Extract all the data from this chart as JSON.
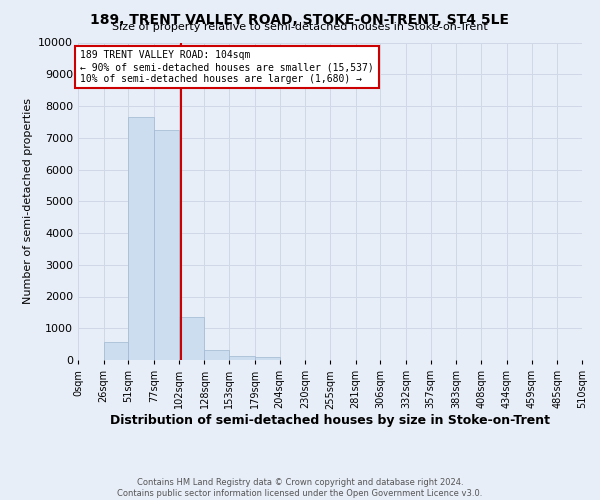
{
  "title": "189, TRENT VALLEY ROAD, STOKE-ON-TRENT, ST4 5LE",
  "subtitle": "Size of property relative to semi-detached houses in Stoke-on-Trent",
  "xlabel": "Distribution of semi-detached houses by size in Stoke-on-Trent",
  "ylabel": "Number of semi-detached properties",
  "footnote1": "Contains HM Land Registry data © Crown copyright and database right 2024.",
  "footnote2": "Contains public sector information licensed under the Open Government Licence v3.0.",
  "bin_edges": [
    0,
    26,
    51,
    77,
    102,
    128,
    153,
    179,
    204,
    230,
    255,
    281,
    306,
    332,
    357,
    383,
    408,
    434,
    459,
    485,
    510
  ],
  "bin_labels": [
    "0sqm",
    "26sqm",
    "51sqm",
    "77sqm",
    "102sqm",
    "128sqm",
    "153sqm",
    "179sqm",
    "204sqm",
    "230sqm",
    "255sqm",
    "281sqm",
    "306sqm",
    "332sqm",
    "357sqm",
    "383sqm",
    "408sqm",
    "434sqm",
    "459sqm",
    "485sqm",
    "510sqm"
  ],
  "bar_heights": [
    0,
    580,
    7650,
    7250,
    1350,
    300,
    130,
    85,
    0,
    0,
    0,
    0,
    0,
    0,
    0,
    0,
    0,
    0,
    0,
    0
  ],
  "bar_color": "#ccddf0",
  "bar_edge_color": "#a0b8d0",
  "property_line_x": 104,
  "property_line_color": "#cc0000",
  "annotation_line1": "189 TRENT VALLEY ROAD: 104sqm",
  "annotation_line2": "← 90% of semi-detached houses are smaller (15,537)",
  "annotation_line3": "10% of semi-detached houses are larger (1,680) →",
  "annotation_box_color": "white",
  "annotation_box_edge_color": "#cc0000",
  "ylim": [
    0,
    10000
  ],
  "xlim": [
    0,
    510
  ],
  "yticks": [
    0,
    1000,
    2000,
    3000,
    4000,
    5000,
    6000,
    7000,
    8000,
    9000,
    10000
  ],
  "grid_color": "#d0d8e8",
  "background_color": "#e8eef8",
  "title_fontsize": 10,
  "subtitle_fontsize": 8,
  "ylabel_fontsize": 8,
  "xlabel_fontsize": 9,
  "annotation_fontsize": 7,
  "ytick_fontsize": 8,
  "xtick_fontsize": 7
}
